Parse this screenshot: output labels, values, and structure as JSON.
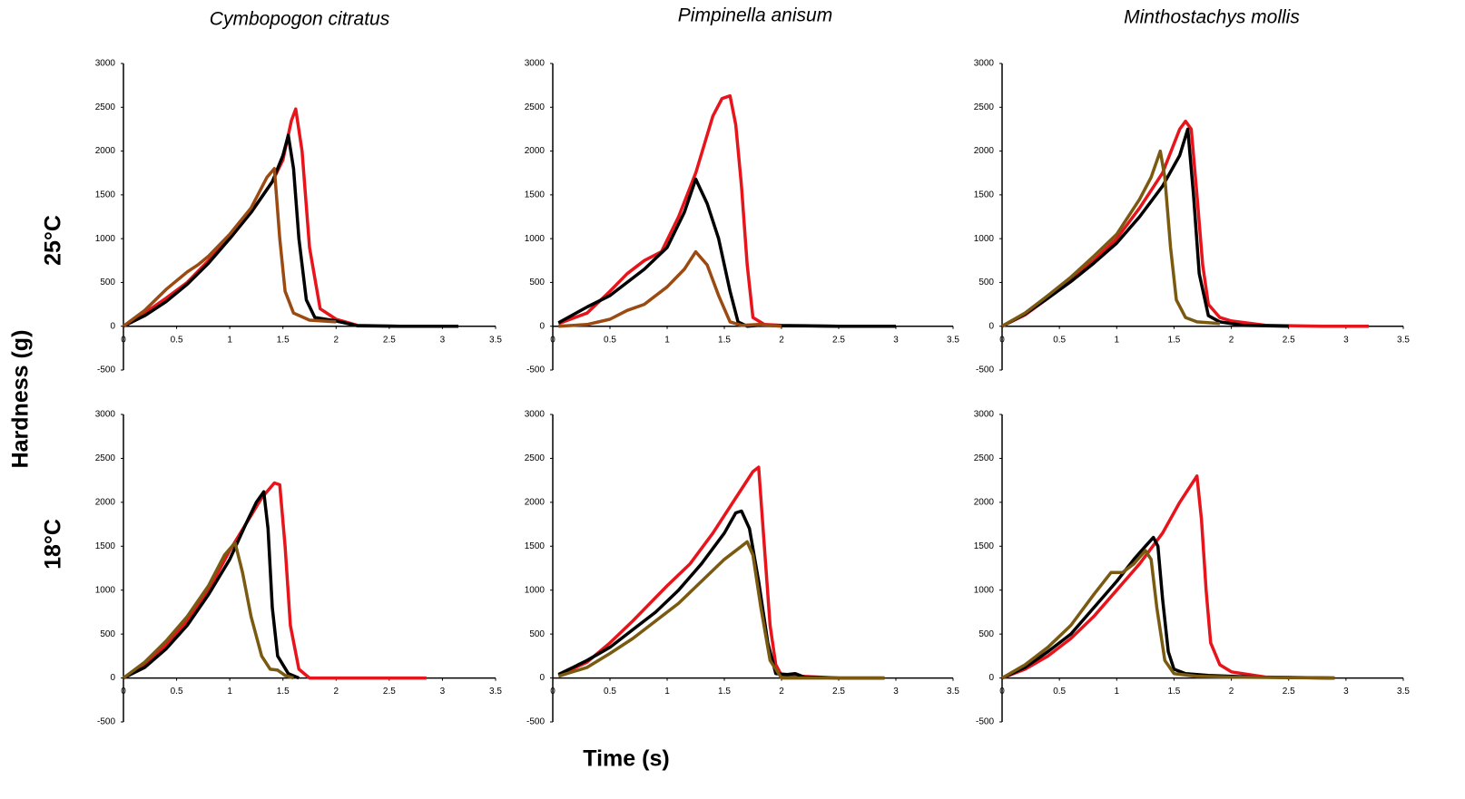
{
  "figure": {
    "column_titles": [
      "Cymbopogon citratus",
      "Pimpinella anisum",
      "Minthostachys mollis"
    ],
    "row_labels": [
      "25°C",
      "18°C"
    ],
    "ylabel": "Hardness (g)",
    "xlabel": "Time (s)"
  },
  "chart_data": [
    {
      "type": "line",
      "xlim": [
        0,
        3.5
      ],
      "ylim": [
        -500,
        3000
      ],
      "xticks": [
        0,
        0.5,
        1,
        1.5,
        2,
        2.5,
        3,
        3.5
      ],
      "yticks": [
        -500,
        0,
        500,
        1000,
        1500,
        2000,
        2500,
        3000
      ],
      "series": [
        {
          "color": "#e8141b",
          "x": [
            0,
            0.2,
            0.4,
            0.6,
            0.8,
            1.0,
            1.2,
            1.4,
            1.5,
            1.58,
            1.62,
            1.68,
            1.75,
            1.85,
            2.0,
            2.2,
            2.6,
            3.0,
            3.15
          ],
          "values": [
            0,
            150,
            320,
            500,
            750,
            1000,
            1300,
            1650,
            1900,
            2350,
            2480,
            2000,
            900,
            200,
            80,
            10,
            0,
            0,
            0
          ]
        },
        {
          "color": "#000000",
          "x": [
            0,
            0.2,
            0.4,
            0.6,
            0.8,
            1.0,
            1.2,
            1.4,
            1.5,
            1.55,
            1.6,
            1.65,
            1.72,
            1.8,
            2.0,
            2.2,
            2.6,
            3.15
          ],
          "values": [
            0,
            120,
            280,
            480,
            720,
            1000,
            1300,
            1650,
            1950,
            2180,
            1800,
            1000,
            300,
            100,
            60,
            5,
            0,
            0
          ]
        },
        {
          "color": "#9b4a12",
          "x": [
            0,
            0.2,
            0.4,
            0.6,
            0.7,
            0.8,
            1.0,
            1.2,
            1.35,
            1.42,
            1.47,
            1.52,
            1.6,
            1.75,
            2.0
          ],
          "values": [
            0,
            180,
            420,
            620,
            700,
            800,
            1050,
            1350,
            1700,
            1800,
            1000,
            400,
            150,
            70,
            50
          ]
        }
      ]
    },
    {
      "type": "line",
      "xlim": [
        0,
        3.5
      ],
      "ylim": [
        -500,
        3000
      ],
      "xticks": [
        0,
        0.5,
        1,
        1.5,
        2,
        2.5,
        3,
        3.5
      ],
      "yticks": [
        -500,
        0,
        500,
        1000,
        1500,
        2000,
        2500,
        3000
      ],
      "series": [
        {
          "color": "#e8141b",
          "x": [
            0.05,
            0.3,
            0.5,
            0.65,
            0.8,
            0.95,
            1.1,
            1.25,
            1.4,
            1.48,
            1.55,
            1.6,
            1.65,
            1.7,
            1.75,
            1.85,
            2.0,
            2.5,
            2.9
          ],
          "values": [
            30,
            150,
            400,
            600,
            750,
            850,
            1250,
            1750,
            2400,
            2600,
            2630,
            2300,
            1600,
            700,
            100,
            20,
            10,
            0,
            0
          ]
        },
        {
          "color": "#000000",
          "x": [
            0.05,
            0.3,
            0.5,
            0.65,
            0.8,
            1.0,
            1.15,
            1.25,
            1.35,
            1.45,
            1.55,
            1.62,
            1.7,
            1.8,
            2.0,
            2.5,
            3.0
          ],
          "values": [
            40,
            220,
            350,
            500,
            650,
            900,
            1300,
            1680,
            1400,
            1000,
            400,
            50,
            0,
            10,
            5,
            0,
            0
          ]
        },
        {
          "color": "#9b4a12",
          "x": [
            0.05,
            0.3,
            0.5,
            0.65,
            0.8,
            1.0,
            1.15,
            1.25,
            1.35,
            1.45,
            1.55,
            1.65,
            1.8,
            2.0
          ],
          "values": [
            0,
            20,
            80,
            180,
            250,
            450,
            650,
            850,
            700,
            350,
            50,
            10,
            20,
            0
          ]
        }
      ]
    },
    {
      "type": "line",
      "xlim": [
        0,
        3.5
      ],
      "ylim": [
        -500,
        3000
      ],
      "xticks": [
        0,
        0.5,
        1,
        1.5,
        2,
        2.5,
        3,
        3.5
      ],
      "yticks": [
        -500,
        0,
        500,
        1000,
        1500,
        2000,
        2500,
        3000
      ],
      "series": [
        {
          "color": "#e8141b",
          "x": [
            0,
            0.2,
            0.4,
            0.6,
            0.8,
            1.0,
            1.2,
            1.4,
            1.55,
            1.6,
            1.65,
            1.7,
            1.75,
            1.8,
            1.9,
            2.0,
            2.3,
            2.8,
            3.2
          ],
          "values": [
            0,
            130,
            320,
            530,
            750,
            1000,
            1350,
            1750,
            2250,
            2340,
            2250,
            1500,
            700,
            250,
            100,
            60,
            10,
            0,
            0
          ]
        },
        {
          "color": "#000000",
          "x": [
            0,
            0.2,
            0.4,
            0.6,
            0.8,
            1.0,
            1.2,
            1.4,
            1.55,
            1.62,
            1.67,
            1.72,
            1.8,
            1.9,
            2.1,
            2.5
          ],
          "values": [
            0,
            140,
            320,
            510,
            720,
            950,
            1250,
            1600,
            1950,
            2250,
            1500,
            600,
            120,
            50,
            10,
            0
          ]
        },
        {
          "color": "#7a5a10",
          "x": [
            0,
            0.2,
            0.4,
            0.6,
            0.8,
            1.0,
            1.2,
            1.3,
            1.38,
            1.42,
            1.47,
            1.52,
            1.6,
            1.7,
            1.9
          ],
          "values": [
            0,
            150,
            350,
            560,
            800,
            1050,
            1450,
            1700,
            2000,
            1700,
            900,
            300,
            100,
            50,
            30
          ]
        }
      ]
    },
    {
      "type": "line",
      "xlim": [
        0,
        3.5
      ],
      "ylim": [
        -500,
        3000
      ],
      "xticks": [
        0,
        0.5,
        1,
        1.5,
        2,
        2.5,
        3,
        3.5
      ],
      "yticks": [
        -500,
        0,
        500,
        1000,
        1500,
        2000,
        2500,
        3000
      ],
      "series": [
        {
          "color": "#e8141b",
          "x": [
            0,
            0.2,
            0.4,
            0.6,
            0.8,
            1.0,
            1.2,
            1.3,
            1.42,
            1.47,
            1.52,
            1.57,
            1.65,
            1.75,
            2.0,
            2.5,
            2.85
          ],
          "values": [
            0,
            150,
            380,
            650,
            1000,
            1450,
            1850,
            2050,
            2220,
            2200,
            1500,
            600,
            100,
            0,
            0,
            0,
            0
          ]
        },
        {
          "color": "#000000",
          "x": [
            0,
            0.2,
            0.4,
            0.6,
            0.8,
            1.0,
            1.15,
            1.25,
            1.32,
            1.36,
            1.4,
            1.45,
            1.55,
            1.65
          ],
          "values": [
            0,
            120,
            330,
            600,
            950,
            1350,
            1750,
            2000,
            2120,
            1700,
            800,
            250,
            50,
            0
          ]
        },
        {
          "color": "#7a5a10",
          "x": [
            0,
            0.2,
            0.4,
            0.6,
            0.8,
            0.95,
            1.05,
            1.12,
            1.2,
            1.3,
            1.38,
            1.45,
            1.52,
            1.6
          ],
          "values": [
            0,
            180,
            420,
            700,
            1050,
            1400,
            1540,
            1200,
            700,
            250,
            100,
            90,
            30,
            0
          ]
        }
      ]
    },
    {
      "type": "line",
      "xlim": [
        0,
        3.5
      ],
      "ylim": [
        -500,
        3000
      ],
      "xticks": [
        0,
        0.5,
        1,
        1.5,
        2,
        2.5,
        3,
        3.5
      ],
      "yticks": [
        -500,
        0,
        500,
        1000,
        1500,
        2000,
        2500,
        3000
      ],
      "series": [
        {
          "color": "#e8141b",
          "x": [
            0.05,
            0.3,
            0.5,
            0.7,
            0.85,
            1.0,
            1.2,
            1.4,
            1.6,
            1.75,
            1.8,
            1.85,
            1.9,
            1.95,
            2.0,
            2.5,
            2.9
          ],
          "values": [
            30,
            180,
            400,
            650,
            850,
            1050,
            1300,
            1650,
            2050,
            2350,
            2400,
            1500,
            600,
            150,
            30,
            0,
            0
          ]
        },
        {
          "color": "#000000",
          "x": [
            0.05,
            0.3,
            0.5,
            0.7,
            0.9,
            1.1,
            1.3,
            1.5,
            1.6,
            1.65,
            1.72,
            1.8,
            1.88,
            1.95,
            2.05,
            2.12,
            2.2,
            2.5,
            2.9
          ],
          "values": [
            40,
            200,
            350,
            550,
            750,
            1000,
            1300,
            1650,
            1880,
            1900,
            1700,
            1100,
            400,
            50,
            40,
            50,
            10,
            0,
            0
          ]
        },
        {
          "color": "#7a5a10",
          "x": [
            0.05,
            0.3,
            0.5,
            0.7,
            0.9,
            1.1,
            1.3,
            1.5,
            1.65,
            1.7,
            1.75,
            1.82,
            1.9,
            2.0,
            2.5,
            2.9
          ],
          "values": [
            20,
            120,
            280,
            450,
            650,
            850,
            1100,
            1350,
            1500,
            1550,
            1400,
            800,
            200,
            0,
            0,
            0
          ]
        }
      ]
    },
    {
      "type": "line",
      "xlim": [
        0,
        3.5
      ],
      "ylim": [
        -500,
        3000
      ],
      "xticks": [
        0,
        0.5,
        1,
        1.5,
        2,
        2.5,
        3,
        3.5
      ],
      "yticks": [
        -500,
        0,
        500,
        1000,
        1500,
        2000,
        2500,
        3000
      ],
      "series": [
        {
          "color": "#e8141b",
          "x": [
            0,
            0.2,
            0.4,
            0.6,
            0.8,
            1.0,
            1.2,
            1.4,
            1.55,
            1.65,
            1.7,
            1.74,
            1.78,
            1.82,
            1.9,
            2.0,
            2.3,
            2.9
          ],
          "values": [
            0,
            100,
            250,
            450,
            700,
            1000,
            1300,
            1650,
            2000,
            2200,
            2300,
            1800,
            1000,
            400,
            150,
            70,
            10,
            0
          ]
        },
        {
          "color": "#000000",
          "x": [
            0,
            0.2,
            0.4,
            0.6,
            0.8,
            1.0,
            1.15,
            1.25,
            1.32,
            1.36,
            1.4,
            1.45,
            1.5,
            1.6,
            1.8,
            2.2,
            2.9
          ],
          "values": [
            0,
            120,
            300,
            500,
            800,
            1100,
            1350,
            1500,
            1600,
            1500,
            900,
            300,
            100,
            50,
            30,
            10,
            0
          ]
        },
        {
          "color": "#7a5a10",
          "x": [
            0,
            0.2,
            0.4,
            0.6,
            0.8,
            0.95,
            1.05,
            1.15,
            1.25,
            1.3,
            1.35,
            1.42,
            1.5,
            1.7,
            2.0,
            2.9
          ],
          "values": [
            0,
            150,
            350,
            600,
            950,
            1200,
            1200,
            1300,
            1450,
            1350,
            800,
            200,
            50,
            20,
            10,
            0
          ]
        }
      ]
    }
  ]
}
